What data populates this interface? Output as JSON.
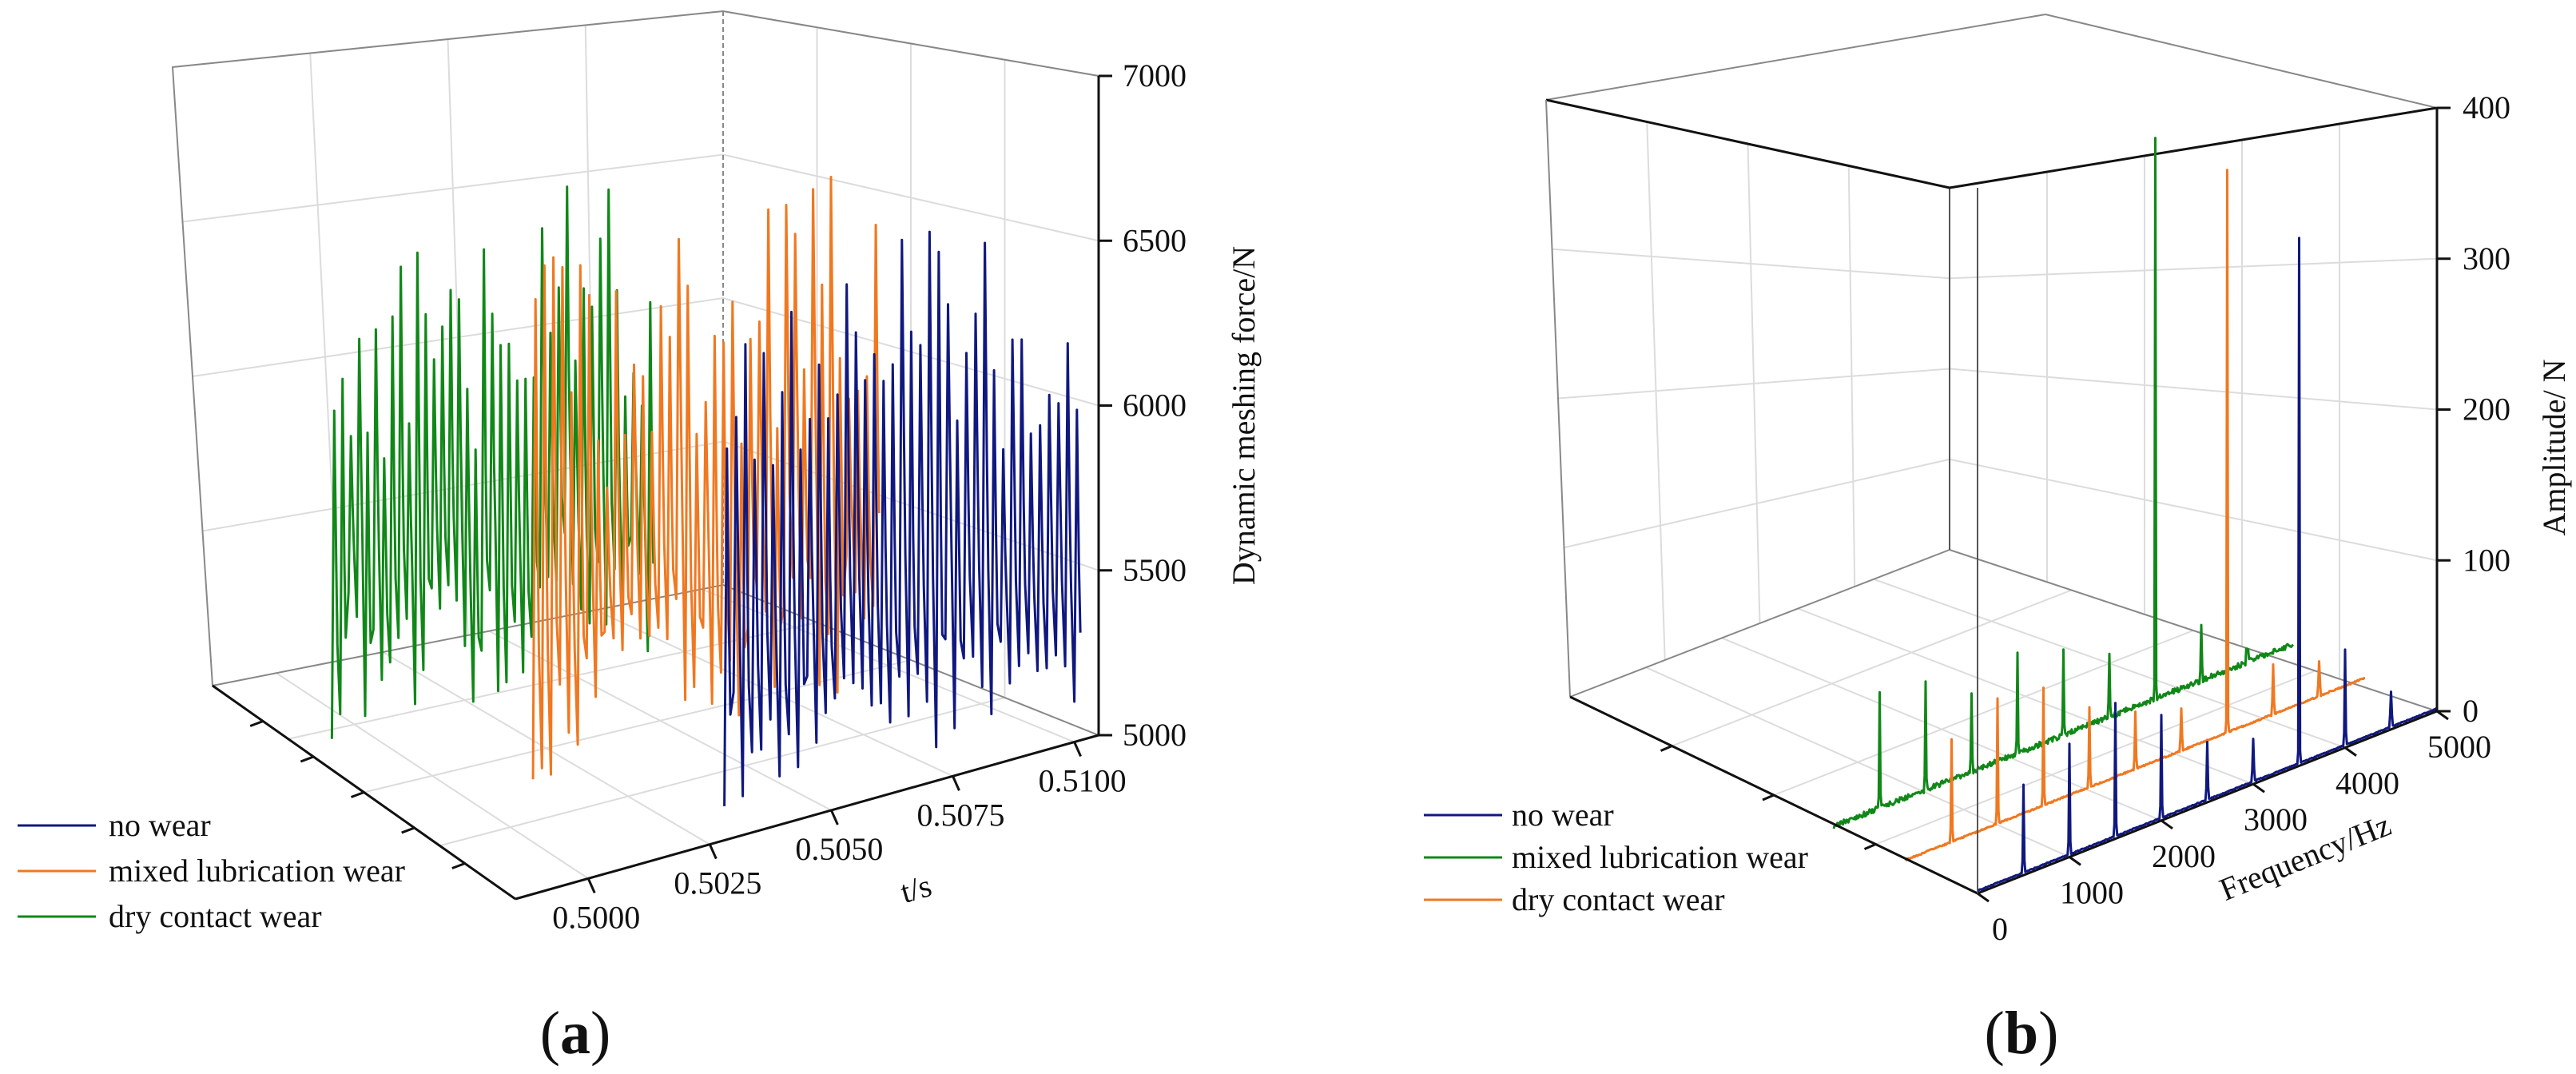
{
  "figure": {
    "panels": [
      {
        "label_open": "(",
        "label_letter": "a",
        "label_close": ")"
      },
      {
        "label_open": "(",
        "label_letter": "b",
        "label_close": ")"
      }
    ]
  },
  "chart_data": [
    {
      "type": "line",
      "view": "3d-waterfall",
      "title": "",
      "xlabel": "t/s",
      "ylabel": "",
      "zlabel": "Dynamic meshing force/N",
      "x_range": [
        0.4985,
        0.5105
      ],
      "x_ticks": [
        "0.5000",
        "0.5025",
        "0.5050",
        "0.5075",
        "0.5100"
      ],
      "z_range": [
        5000,
        7000
      ],
      "z_ticks": [
        "5000",
        "5500",
        "6000",
        "6500",
        "7000"
      ],
      "series": [
        {
          "name": "no wear",
          "color": "#101880",
          "depth_index": 0,
          "t_start": 0.5028,
          "t_end": 0.51,
          "cycles": 38,
          "low_range": [
            5100,
            5450
          ],
          "high_range": [
            5950,
            6700
          ]
        },
        {
          "name": "mixed lubrication wear",
          "color": "#f07820",
          "depth_index": 1,
          "t_start": 0.501,
          "t_end": 0.508,
          "cycles": 38,
          "low_range": [
            5150,
            5600
          ],
          "high_range": [
            5950,
            6750
          ]
        },
        {
          "name": "dry contact wear",
          "color": "#108818",
          "depth_index": 2,
          "t_start": 0.499,
          "t_end": 0.5055,
          "cycles": 38,
          "low_range": [
            5250,
            5700
          ],
          "high_range": [
            6000,
            6750
          ]
        }
      ],
      "legend": [
        "no wear",
        "mixed lubrication wear",
        "dry contact wear"
      ],
      "legend_position": "bottom-left",
      "grid": true
    },
    {
      "type": "line",
      "view": "3d-waterfall",
      "title": "",
      "xlabel": "Frequency/Hz",
      "ylabel": "",
      "zlabel": "Amplitude/ N",
      "x_range": [
        0,
        5000
      ],
      "x_ticks": [
        "0",
        "1000",
        "2000",
        "3000",
        "4000",
        "5000"
      ],
      "z_range": [
        0,
        400
      ],
      "z_ticks": [
        "0",
        "100",
        "200",
        "300",
        "400"
      ],
      "series": [
        {
          "name": "no wear",
          "color": "#101880",
          "depth_index": 0,
          "noise": 0.6,
          "peaks": [
            [
              500,
              60
            ],
            [
              1000,
              75
            ],
            [
              1500,
              90
            ],
            [
              2000,
              70
            ],
            [
              2500,
              40
            ],
            [
              3000,
              30
            ],
            [
              3500,
              350
            ],
            [
              4000,
              65
            ],
            [
              4500,
              25
            ]
          ]
        },
        {
          "name": "mixed lubrication wear",
          "color": "#108818",
          "depth_index": 1,
          "noise": 3.5,
          "peaks": [
            [
              500,
              80
            ],
            [
              1000,
              75
            ],
            [
              1500,
              55
            ],
            [
              2000,
              70
            ],
            [
              2500,
              60
            ],
            [
              3000,
              45
            ],
            [
              3500,
              375
            ],
            [
              4000,
              40
            ],
            [
              4500,
              12
            ]
          ]
        },
        {
          "name": "dry contact wear",
          "color": "#f07820",
          "depth_index": 2,
          "noise": 1.0,
          "peaks": [
            [
              500,
              70
            ],
            [
              1000,
              85
            ],
            [
              1500,
              80
            ],
            [
              2000,
              55
            ],
            [
              2500,
              40
            ],
            [
              3000,
              30
            ],
            [
              3500,
              375
            ],
            [
              4000,
              35
            ],
            [
              4500,
              25
            ]
          ]
        }
      ],
      "legend": [
        "no wear",
        "mixed lubrication wear",
        "dry contact wear"
      ],
      "legend_position": "bottom-left",
      "grid": true
    }
  ]
}
